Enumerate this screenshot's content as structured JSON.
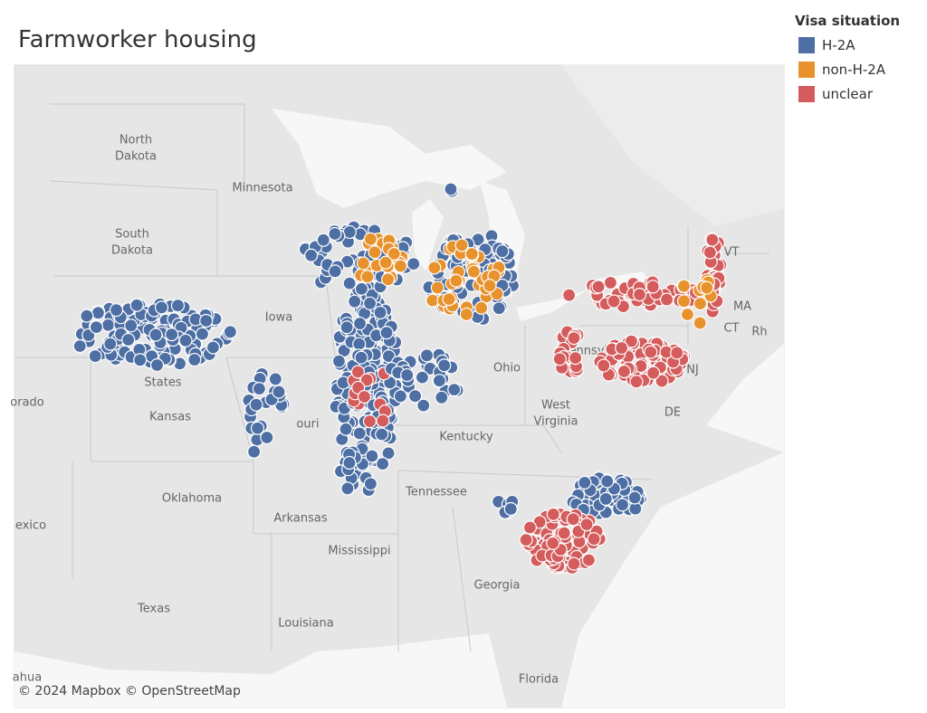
{
  "title": "Farmworker housing",
  "legend": {
    "title": "Visa situation",
    "items": [
      {
        "label": "H-2A",
        "color": "#4e6fa3"
      },
      {
        "label": "non-H-2A",
        "color": "#e8922e"
      },
      {
        "label": "unclear",
        "color": "#d45c5c"
      }
    ]
  },
  "map_labels": [
    "North",
    "Dakota",
    "Minnesota",
    "South",
    "Dakota",
    "Iowa",
    "States",
    "Kansas",
    "orado",
    "Oklahoma",
    "exico",
    "Arkansas",
    "Mississippi",
    "Texas",
    "Louisiana",
    "ahua",
    "ouri",
    "Tennessee",
    "Georgia",
    "Florida",
    "Kentucky",
    "Ohio",
    "West",
    "Virginia",
    "Pennsylv",
    "VT",
    "MA",
    "CT",
    "Rh",
    "DE",
    "NJ"
  ],
  "attribution": "© 2024 Mapbox © OpenStreetMap"
}
